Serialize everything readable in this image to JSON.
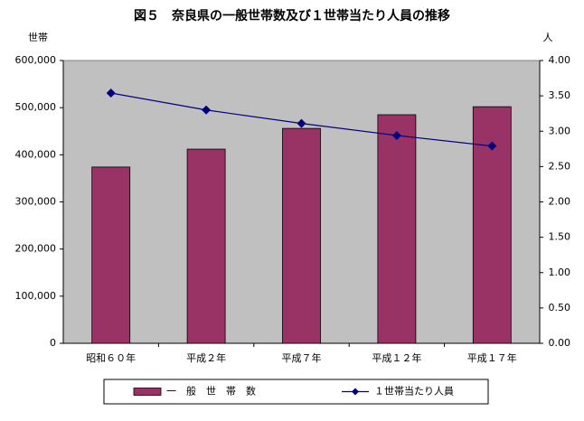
{
  "chart_data": {
    "type": "bar-line",
    "title": "図５　奈良県の一般世帯数及び１世帯当たり人員の推移",
    "y_label": "世帯",
    "y2_label": "人",
    "categories": [
      "昭和６０年",
      "平成２年",
      "平成７年",
      "平成１２年",
      "平成１７年"
    ],
    "series": [
      {
        "name": "一　般　世　帯　数",
        "type": "bar",
        "color": "#993366",
        "values": [
          374000,
          412000,
          456000,
          485000,
          502000
        ]
      },
      {
        "name": "１世帯当たり人員",
        "type": "line",
        "axis": "y2",
        "color": "#000080",
        "values": [
          3.54,
          3.3,
          3.11,
          2.94,
          2.79
        ]
      }
    ],
    "ylim": [
      0,
      600000
    ],
    "yticks": [
      0,
      {
        "value": 100000,
        "label": "100,000"
      },
      {
        "value": 200000,
        "label": "200,000"
      },
      {
        "value": 300000,
        "label": "300,000"
      },
      {
        "value": 400000,
        "label": "400,000"
      },
      {
        "value": 500000,
        "label": "500,000"
      },
      {
        "value": 600000,
        "label": "600,000"
      }
    ],
    "y2lim": [
      0,
      4
    ],
    "y2ticks": [
      {
        "value": 0,
        "label": "0.00"
      },
      {
        "value": 0.5,
        "label": "0.50"
      },
      {
        "value": 1,
        "label": "1.00"
      },
      {
        "value": 1.5,
        "label": "1.50"
      },
      {
        "value": 2,
        "label": "2.00"
      },
      {
        "value": 2.5,
        "label": "2.50"
      },
      {
        "value": 3,
        "label": "3.00"
      },
      {
        "value": 3.5,
        "label": "3.50"
      },
      {
        "value": 4,
        "label": "4.00"
      }
    ],
    "plot_background": "#c0c0c0",
    "legend": "bottom"
  }
}
